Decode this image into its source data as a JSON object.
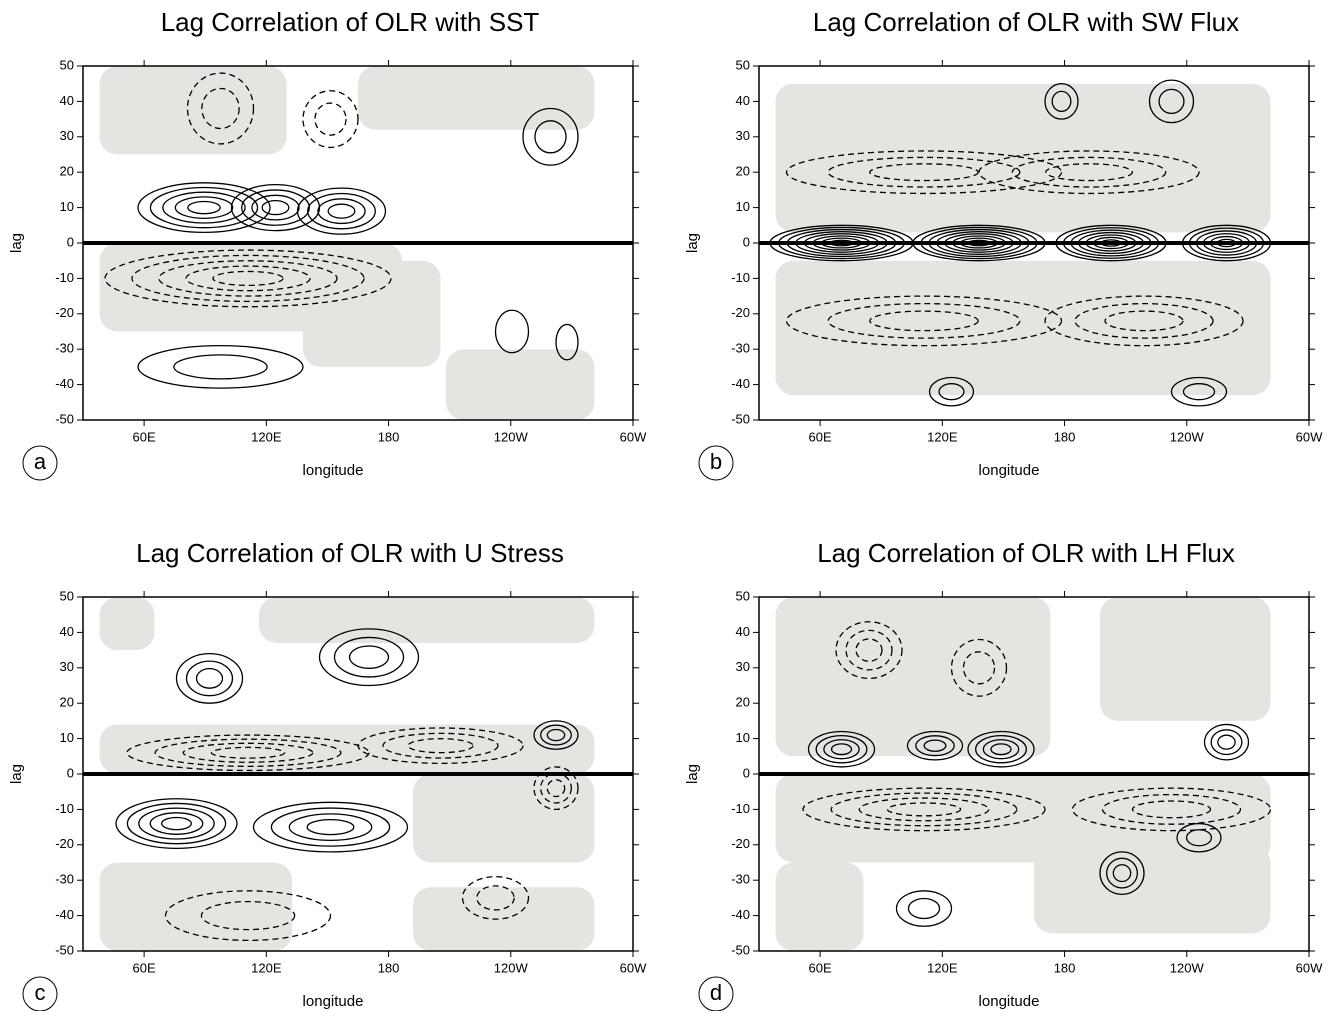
{
  "chart_data": [
    {
      "type": "contour",
      "panel_label": "a",
      "title": "Lag Correlation of OLR with SST",
      "x_label": "longitude",
      "y_label": "lag",
      "xlim": [
        30,
        300
      ],
      "xticks": [
        {
          "value": 60,
          "label": "60E"
        },
        {
          "value": 120,
          "label": "120E"
        },
        180,
        {
          "value": 240,
          "label": "120W"
        },
        {
          "value": 300,
          "label": "60W"
        }
      ],
      "ylim": [
        -50,
        50
      ],
      "yticks": [
        -50,
        -40,
        -30,
        -20,
        -10,
        0,
        10,
        20,
        30,
        40,
        50
      ]
    },
    {
      "type": "contour",
      "panel_label": "b",
      "title": "Lag Correlation of OLR with SW Flux",
      "x_label": "longitude",
      "y_label": "lag",
      "xlim": [
        30,
        300
      ],
      "xticks": [
        {
          "value": 60,
          "label": "60E"
        },
        {
          "value": 120,
          "label": "120E"
        },
        180,
        {
          "value": 240,
          "label": "120W"
        },
        {
          "value": 300,
          "label": "60W"
        }
      ],
      "ylim": [
        -50,
        50
      ],
      "yticks": [
        -50,
        -40,
        -30,
        -20,
        -10,
        0,
        10,
        20,
        30,
        40,
        50
      ]
    },
    {
      "type": "contour",
      "panel_label": "c",
      "title": "Lag Correlation of OLR with U Stress",
      "x_label": "longitude",
      "y_label": "lag",
      "xlim": [
        30,
        300
      ],
      "xticks": [
        {
          "value": 60,
          "label": "60E"
        },
        {
          "value": 120,
          "label": "120E"
        },
        180,
        {
          "value": 240,
          "label": "120W"
        },
        {
          "value": 300,
          "label": "60W"
        }
      ],
      "ylim": [
        -50,
        50
      ],
      "yticks": [
        -50,
        -40,
        -30,
        -20,
        -10,
        0,
        10,
        20,
        30,
        40,
        50
      ]
    },
    {
      "type": "contour",
      "panel_label": "d",
      "title": "Lag Correlation of OLR with LH Flux",
      "x_label": "longitude",
      "y_label": "lag",
      "xlim": [
        30,
        300
      ],
      "xticks": [
        {
          "value": 60,
          "label": "60E"
        },
        {
          "value": 120,
          "label": "120E"
        },
        180,
        {
          "value": 240,
          "label": "120W"
        },
        {
          "value": 300,
          "label": "60W"
        }
      ],
      "ylim": [
        -50,
        50
      ],
      "yticks": [
        -50,
        -40,
        -30,
        -20,
        -10,
        0,
        10,
        20,
        30,
        40,
        50
      ]
    }
  ]
}
